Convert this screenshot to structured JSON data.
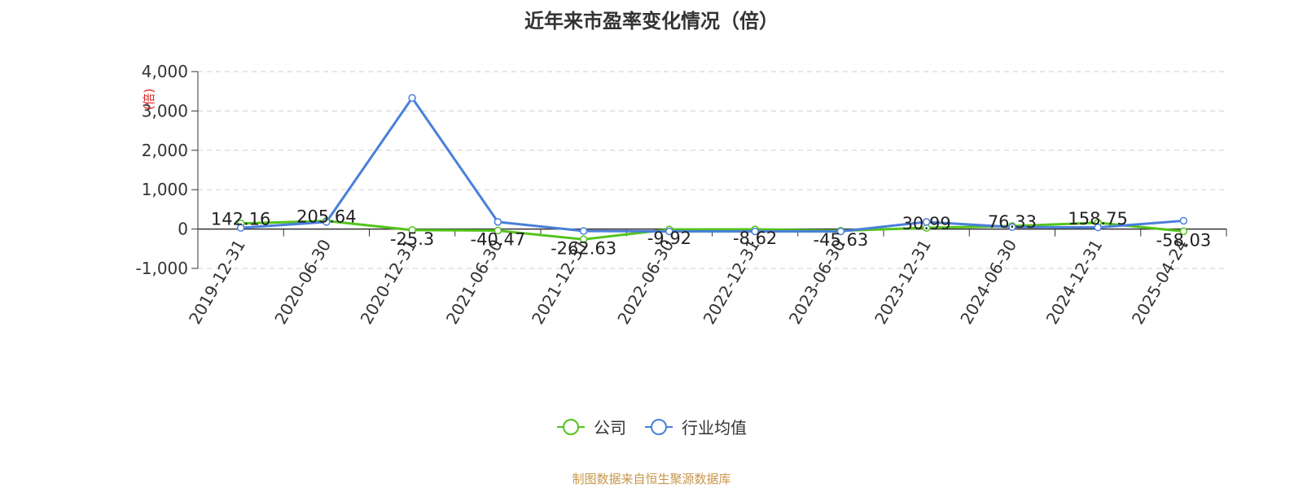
{
  "colors": {
    "company": "#52c41a",
    "industry": "#4a7fdb",
    "grid": "#cfcfcf",
    "ylabel": "#e02020",
    "source": "#c8964b"
  },
  "source_note": "制图数据来自恒生聚源数据库",
  "chart_data": {
    "type": "line",
    "title": "近年来市盈率变化情况（倍）",
    "ylabel": "(倍)",
    "xlabel": "",
    "ylim": [
      -1000,
      4000
    ],
    "yticks": [
      -1000,
      0,
      1000,
      2000,
      3000,
      4000
    ],
    "ytick_labels": [
      "-1,000",
      "0",
      "1,000",
      "2,000",
      "3,000",
      "4,000"
    ],
    "grid": true,
    "legend_position": "bottom-center",
    "categories": [
      "2019-12-31",
      "2020-06-30",
      "2020-12-31",
      "2021-06-30",
      "2021-12-31",
      "2022-06-30",
      "2022-12-31",
      "2023-06-30",
      "2023-12-31",
      "2024-06-30",
      "2024-12-31",
      "2025-04-24"
    ],
    "series": [
      {
        "name": "公司",
        "color": "#52c41a",
        "values": [
          142.16,
          205.64,
          -25.3,
          -40.47,
          -262.63,
          -9.92,
          -8.62,
          -45.63,
          30.99,
          76.33,
          158.75,
          -58.03
        ],
        "labels": [
          "142.16",
          "205.64",
          "-25.3",
          "-40.47",
          "-262.63",
          "-9.92",
          "-8.62",
          "-45.63",
          "30.99",
          "76.33",
          "158.75",
          "-58.03"
        ]
      },
      {
        "name": "行业均值",
        "color": "#4a7fdb",
        "values": [
          30,
          180,
          3330,
          180,
          -50,
          -60,
          -60,
          -60,
          180,
          50,
          40,
          210
        ]
      }
    ]
  }
}
